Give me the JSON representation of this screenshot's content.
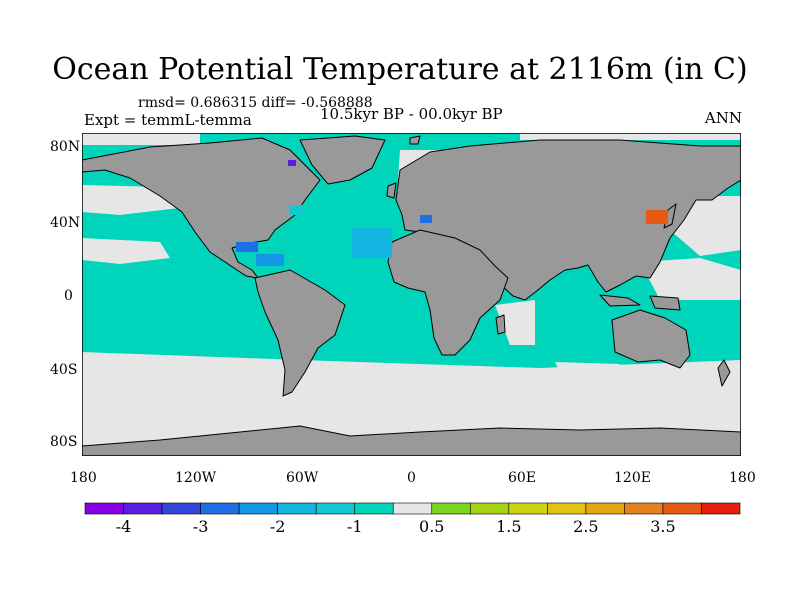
{
  "map": {
    "title": "Ocean Potential Temperature at 2116m (in C)",
    "stats": "rmsd= 0.686315 diff= -0.568888",
    "experiment": "Expt = temmL-temma",
    "period": "10.5kyr BP - 00.0kyr BP",
    "season": "ANN",
    "lat_ticks": [
      "80N",
      "40N",
      "0",
      "40S",
      "80S"
    ],
    "lon_ticks": [
      "180",
      "120W",
      "60W",
      "0",
      "60E",
      "120E",
      "180"
    ]
  },
  "colors": {
    "land": "#999999",
    "ocean_near_zero": "#00d4bb",
    "ocean_neutral": "#e6e6e6",
    "coastline": "#000000"
  },
  "colorbar": {
    "colors": [
      "#8a00e6",
      "#5a1ee0",
      "#3246dc",
      "#1e6ee6",
      "#1496e6",
      "#14b4e1",
      "#14c8d2",
      "#00d4bb",
      "#e6e6e6",
      "#7ad61e",
      "#a5d214",
      "#cdd414",
      "#e1c314",
      "#e6a514",
      "#e6821e",
      "#e65a14",
      "#e61e0a"
    ],
    "labels": [
      "-4",
      "-3",
      "-2",
      "-1",
      "0.5",
      "1.5",
      "2.5",
      "3.5"
    ],
    "label_positions": [
      1,
      3,
      5,
      7,
      9,
      11,
      13,
      15
    ]
  }
}
